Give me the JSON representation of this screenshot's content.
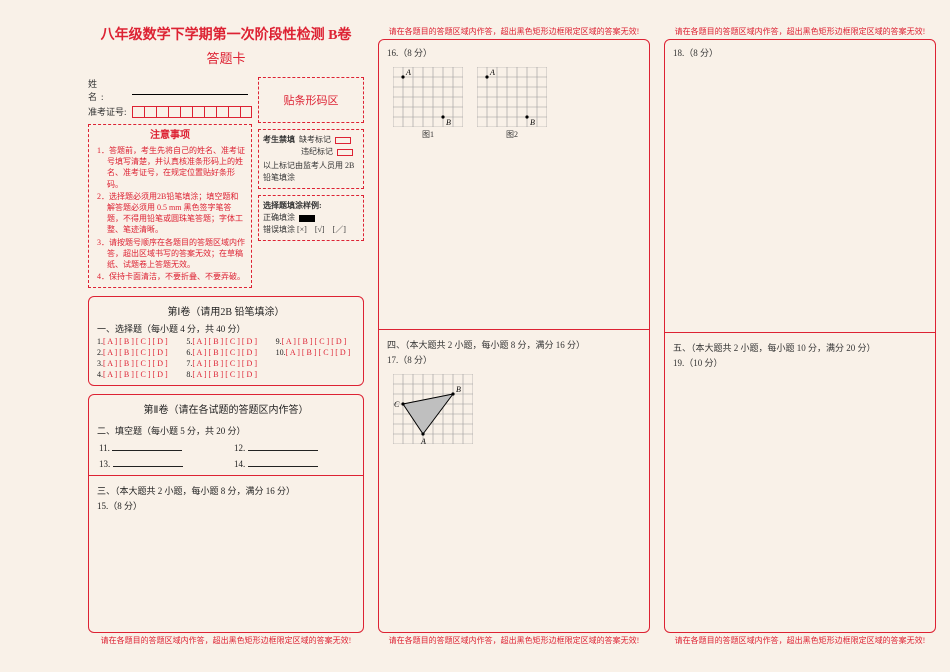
{
  "header": {
    "title": "八年级数学下学期第一次阶段性检测 B卷",
    "subtitle": "答题卡"
  },
  "student": {
    "name_label": "姓　名:",
    "ticket_label": "准考证号:",
    "ticket_cells": 10
  },
  "instructions": {
    "title": "注意事项",
    "items": [
      "1．答题前，考生先将自己的姓名、准考证号填写清楚，并认真核准条形码上的姓名、准考证号，在规定位置贴好条形码。",
      "2．选择题必须用2B铅笔填涂；填空题和解答题必须用 0.5 mm 黑色签字笔答题，不得用铅笔或圆珠笔答题；字体工整、笔迹清晰。",
      "3．请按题号顺序在各题目的答题区域内作答，超出区域书写的答案无效；在草稿纸、试题卷上答题无效。",
      "4．保持卡面清洁，不要折叠、不要弄破。"
    ]
  },
  "barcode": {
    "label": "贴条形码区"
  },
  "marker_box": {
    "head": "考生禁填",
    "row1": "缺考标记",
    "row2": "违纪标记",
    "note": "以上标记由监考人员用 2B 铅笔填涂"
  },
  "sample_box": {
    "head": "选择题填涂样例:",
    "ok": "正确填涂",
    "bad": "错误填涂 [×]　[√]　[／]"
  },
  "section1": {
    "title": "第Ⅰ卷（请用2B 铅笔填涂）",
    "mc_head": "一、选择题（每小题 4 分，共 40 分）",
    "items": [
      {
        "n": "1",
        "o": "[ A ] [ B ] [ C ] [ D ]"
      },
      {
        "n": "2",
        "o": "[ A ] [ B ] [ C ] [ D ]"
      },
      {
        "n": "3",
        "o": "[ A ] [ B ] [ C ] [ D ]"
      },
      {
        "n": "4",
        "o": "[ A ] [ B ] [ C ] [ D ]"
      },
      {
        "n": "5",
        "o": "[ A ] [ B ] [ C ] [ D ]"
      },
      {
        "n": "6",
        "o": "[ A ] [ B ] [ C ] [ D ]"
      },
      {
        "n": "7",
        "o": "[ A ] [ B ] [ C ] [ D ]"
      },
      {
        "n": "8",
        "o": "[ A ] [ B ] [ C ] [ D ]"
      },
      {
        "n": "9",
        "o": "[ A ] [ B ] [ C ] [ D ]"
      },
      {
        "n": "10",
        "o": "[ A ] [ B ] [ C ] [ D ]"
      }
    ]
  },
  "section2": {
    "title": "第Ⅱ卷（请在各试题的答题区内作答）",
    "fill_head": "二、填空题（每小题 5 分，共 20 分）",
    "fills": [
      "11.",
      "12.",
      "13.",
      "14."
    ],
    "q3_head": "三、（本大题共 2 小题，每小题 8 分，满分 16 分）",
    "q15": "15.（8 分）"
  },
  "warn": "请在各题目的答题区域内作答，超出黑色矩形边框限定区域的答案无效!",
  "col2": {
    "q16": "16.（8 分）",
    "fig1_cap": "图1",
    "fig2_cap": "图2",
    "lblA": "A",
    "lblB": "B",
    "lblC": "C",
    "grid": {
      "cols": 7,
      "rows": 6,
      "cell": 10,
      "stroke": "#999"
    },
    "fig1_pts": {
      "A": [
        1,
        1
      ],
      "B": [
        5,
        5
      ]
    },
    "fig2_pts": {
      "A": [
        1,
        1
      ],
      "B": [
        5,
        5
      ]
    },
    "q4_head": "四、（本大题共 2 小题，每小题 8 分，满分 16 分）",
    "q17": "17.（8 分）",
    "tri": {
      "grid": {
        "cols": 8,
        "rows": 7,
        "cell": 10,
        "stroke": "#999"
      },
      "pts": {
        "A": [
          3,
          6
        ],
        "B": [
          6,
          2
        ],
        "C": [
          1,
          3
        ]
      },
      "fill": "#bfbfbf",
      "stroke": "#000"
    }
  },
  "col3": {
    "q18": "18.（8 分）",
    "q5_head": "五、（本大题共 2 小题，每小题 10 分，满分 20 分）",
    "q19": "19.（10 分）"
  },
  "colors": {
    "red": "#d23"
  }
}
